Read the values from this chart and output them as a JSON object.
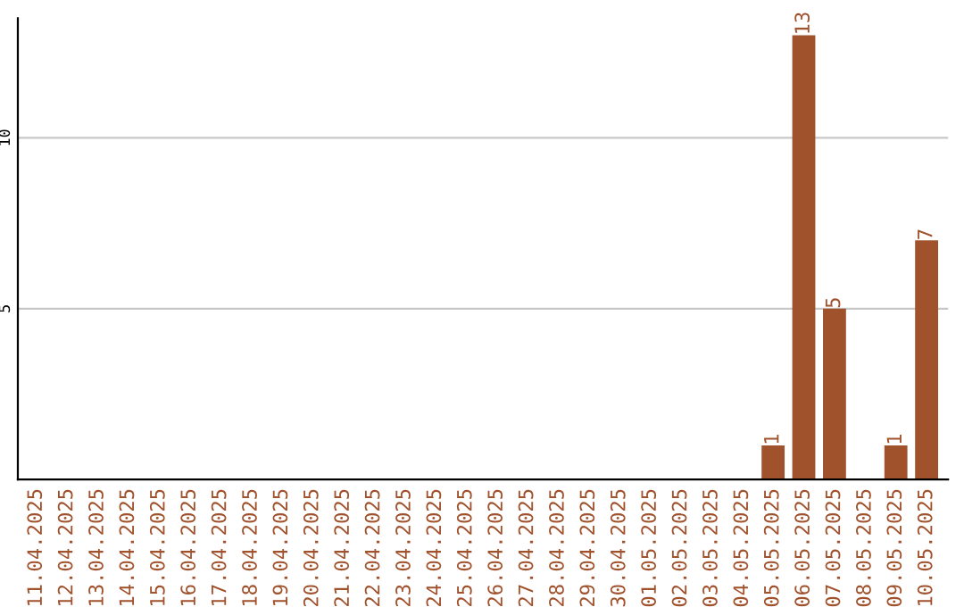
{
  "chart_data": {
    "type": "bar",
    "categories": [
      "11.04.2025",
      "12.04.2025",
      "13.04.2025",
      "14.04.2025",
      "15.04.2025",
      "16.04.2025",
      "17.04.2025",
      "18.04.2025",
      "19.04.2025",
      "20.04.2025",
      "21.04.2025",
      "22.04.2025",
      "23.04.2025",
      "24.04.2025",
      "25.04.2025",
      "26.04.2025",
      "27.04.2025",
      "28.04.2025",
      "29.04.2025",
      "30.04.2025",
      "01.05.2025",
      "02.05.2025",
      "03.05.2025",
      "04.05.2025",
      "05.05.2025",
      "06.05.2025",
      "07.05.2025",
      "08.05.2025",
      "09.05.2025",
      "10.05.2025"
    ],
    "values": [
      0,
      0,
      0,
      0,
      0,
      0,
      0,
      0,
      0,
      0,
      0,
      0,
      0,
      0,
      0,
      0,
      0,
      0,
      0,
      0,
      0,
      0,
      0,
      0,
      1,
      13,
      5,
      0,
      1,
      7
    ],
    "value_labels": [
      null,
      null,
      null,
      null,
      null,
      null,
      null,
      null,
      null,
      null,
      null,
      null,
      null,
      null,
      null,
      null,
      null,
      null,
      null,
      null,
      null,
      null,
      null,
      null,
      "1",
      "13",
      "5",
      null,
      "1",
      "7"
    ],
    "color": "#a0522d",
    "ylim": [
      0,
      13.5
    ],
    "yticks": [
      5,
      10
    ],
    "grid": "y"
  }
}
